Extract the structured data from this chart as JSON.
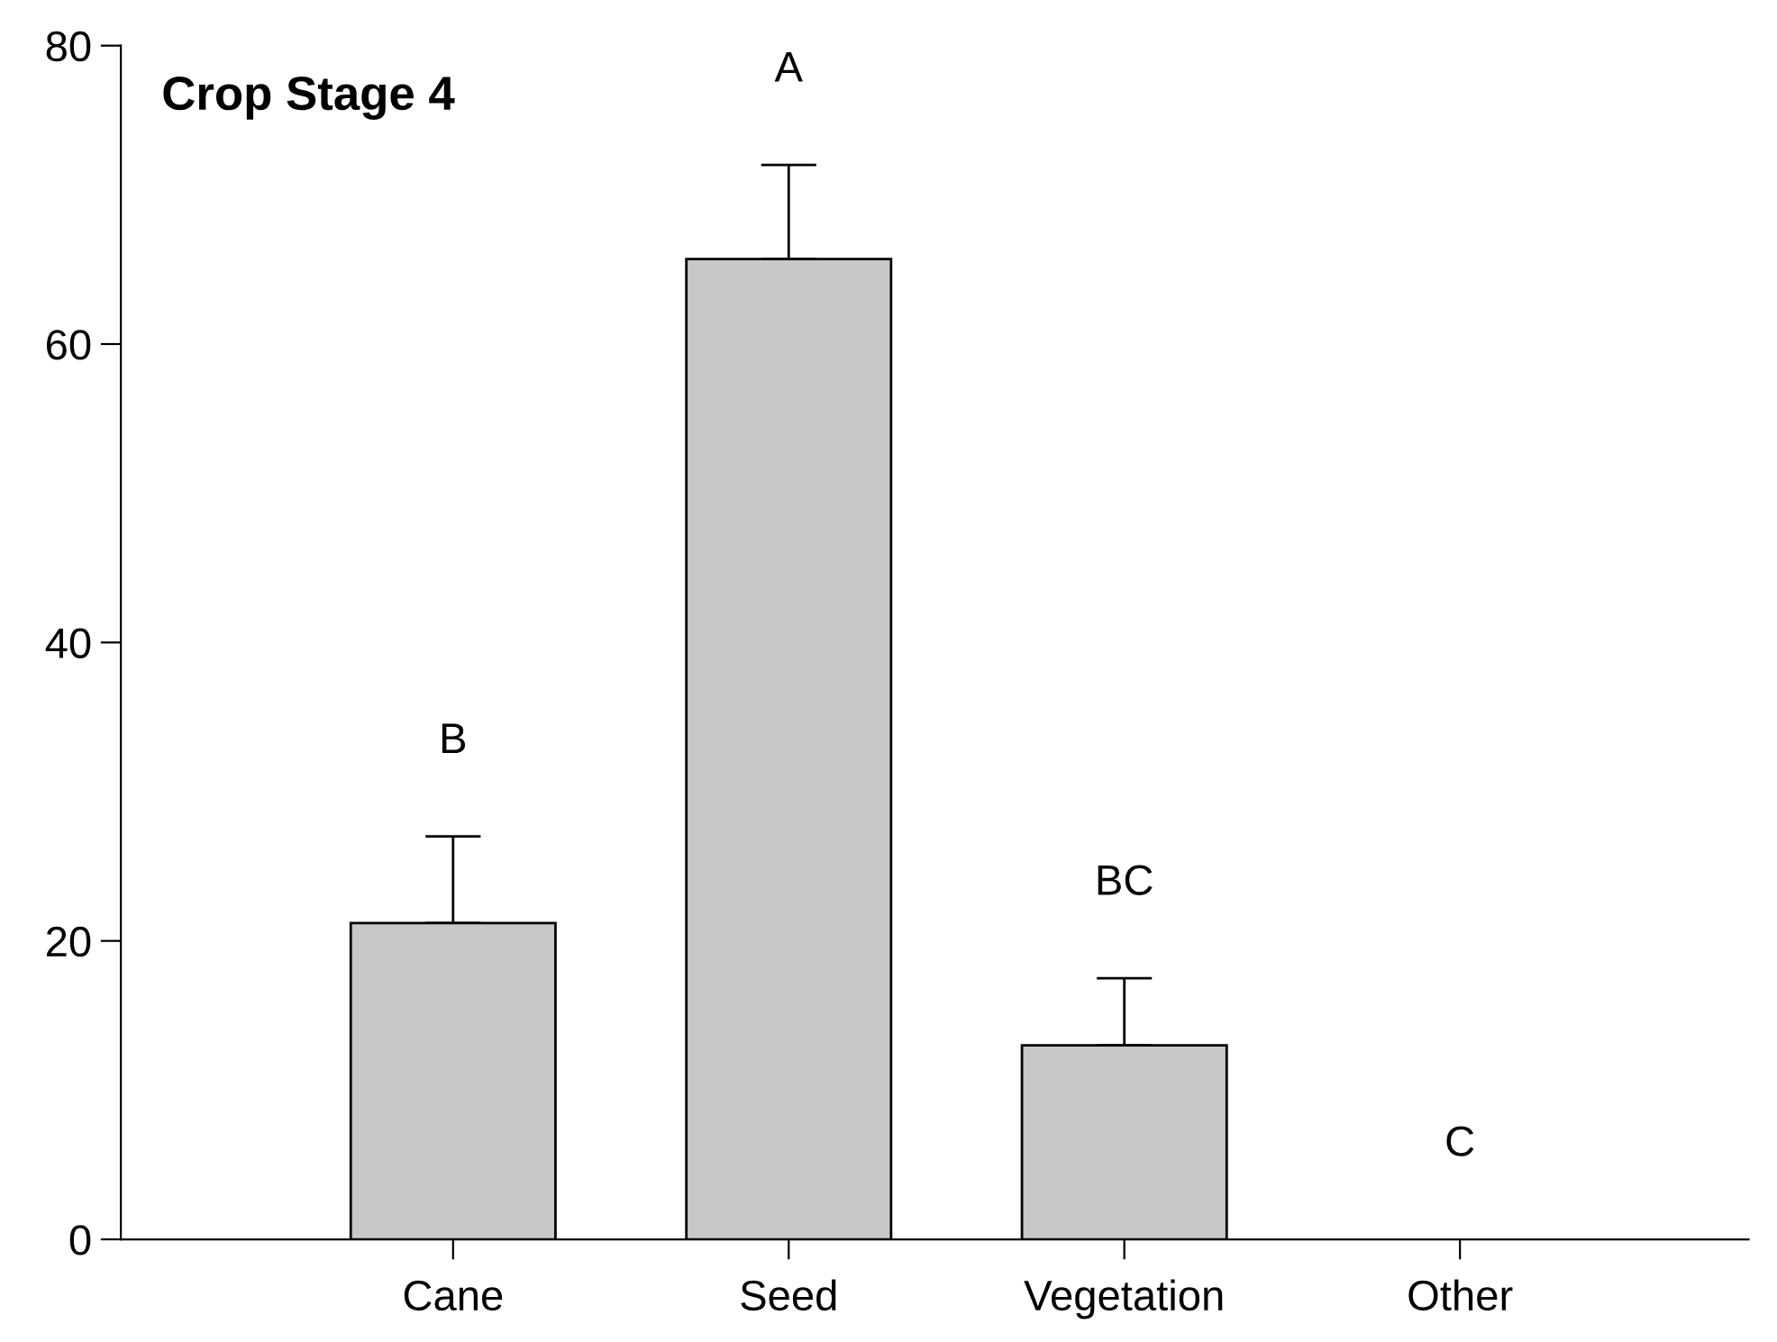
{
  "chart_data": {
    "type": "bar",
    "title": "Crop Stage 4",
    "categories": [
      "Cane",
      "Seed",
      "Vegetation",
      "Other"
    ],
    "values": [
      21.2,
      65.7,
      13.0,
      0
    ],
    "errors": [
      [
        21.2,
        27.0
      ],
      [
        65.7,
        72.0
      ],
      [
        13.0,
        17.5
      ],
      null
    ],
    "color": "#c8c8c8",
    "ylim": [
      0,
      80
    ],
    "yticks": [
      0,
      20,
      40,
      60,
      80
    ],
    "grid": false,
    "annotations": [
      "B",
      "A",
      "BC",
      "C"
    ]
  }
}
